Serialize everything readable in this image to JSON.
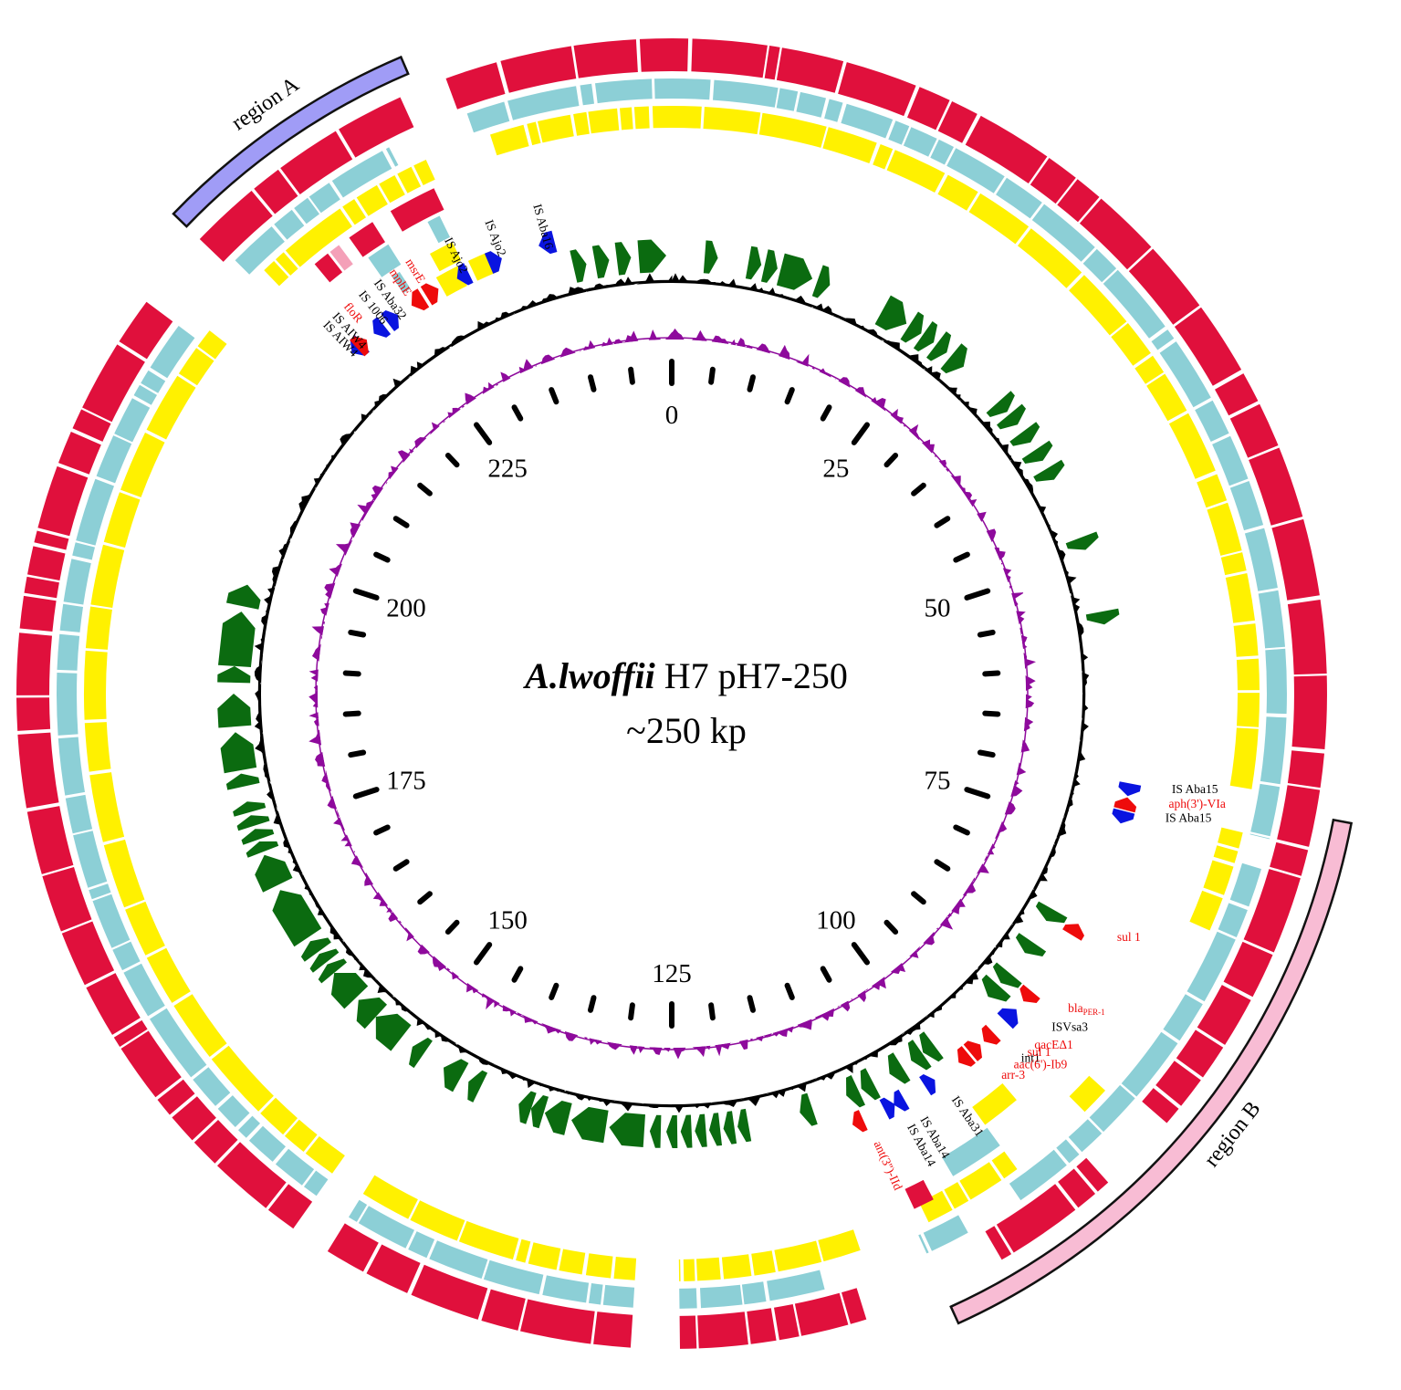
{
  "title": {
    "species": "A.lwoffii",
    "strain": " H7 pH7-250",
    "size": "~250 kp"
  },
  "axis": {
    "total_kb": 250,
    "labels": [
      "0",
      "25",
      "50",
      "75",
      "100",
      "125",
      "150",
      "175",
      "200",
      "225"
    ]
  },
  "regions": [
    {
      "name": "region A",
      "start_kb": 218,
      "end_kb": 234,
      "color": "#a09cf6"
    },
    {
      "name": "region B",
      "start_kb": 70,
      "end_kb": 108,
      "color": "#f8bcd4"
    }
  ],
  "colors": {
    "ring_outer": "#e0103c",
    "ring_middle": "#8ccfd6",
    "ring_inner": "#fff100",
    "gene_forward": "#0b6b10",
    "gene_reverse": "#7f4040",
    "insertion_sequence": "#0a14e0",
    "resistance_gene": "#ee0b0b",
    "gc_skew": "#8e0a9c",
    "gc_content": "#000000"
  },
  "annotations": [
    {
      "label": "IS Aba16",
      "kb": 239,
      "type": "is"
    },
    {
      "label": "IS Ajo2",
      "kb": 235,
      "type": "is"
    },
    {
      "label": "IS Ajo2",
      "kb": 231.5,
      "type": "is"
    },
    {
      "label": "msrE",
      "kb": 228,
      "type": "resistance"
    },
    {
      "label": "mphE",
      "kb": 226.5,
      "type": "resistance"
    },
    {
      "label": "IS Aba32",
      "kb": 225,
      "type": "is"
    },
    {
      "label": "IS 1006",
      "kb": 223.5,
      "type": "is"
    },
    {
      "label": "floR",
      "kb": 222,
      "type": "resistance"
    },
    {
      "label": "IS AIW4",
      "kb": 220.8,
      "type": "is"
    },
    {
      "label": "IS AIW4",
      "kb": 219.8,
      "type": "is"
    },
    {
      "label": "IS Aba15",
      "kb": 70.2,
      "type": "is"
    },
    {
      "label": "aph(3')-VIa",
      "kb": 71.4,
      "type": "resistance"
    },
    {
      "label": "IS Aba15",
      "kb": 72.6,
      "type": "is"
    },
    {
      "label": "sul 1",
      "kb": 83,
      "type": "resistance"
    },
    {
      "label": "bla",
      "sub": "PER-1",
      "kb": 90,
      "type": "resistance"
    },
    {
      "label": "ISVsa3",
      "kb": 92,
      "type": "is"
    },
    {
      "label": "qacEΔ1",
      "kb": 94,
      "type": "resistance"
    },
    {
      "label": "int1",
      "kb": 95.5,
      "type": "other"
    },
    {
      "label": "sul 1",
      "kb": 94.8,
      "type": "resistance"
    },
    {
      "label": "aac(6')-Ib9",
      "kb": 96.3,
      "type": "resistance"
    },
    {
      "label": "arr-3",
      "kb": 97.6,
      "type": "resistance"
    },
    {
      "label": "IS Aba31",
      "kb": 101,
      "type": "is"
    },
    {
      "label": "IS Aba14",
      "kb": 104,
      "type": "is"
    },
    {
      "label": "IS Aba14",
      "kb": 105.2,
      "type": "is"
    },
    {
      "label": "ant(3'')-IId",
      "kb": 108.2,
      "type": "resistance"
    }
  ]
}
